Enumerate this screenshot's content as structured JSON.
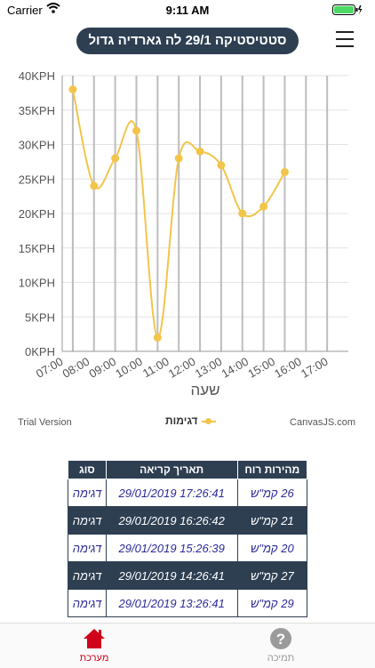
{
  "status_bar": {
    "carrier": "Carrier",
    "time": "9:11 AM"
  },
  "header": {
    "title": "סטטיסטיקה 29/1 לה גארדיה גדול"
  },
  "chart_data": {
    "type": "line",
    "categories": [
      "07:00",
      "08:00",
      "09:00",
      "10:00",
      "11:00",
      "12:00",
      "13:00",
      "14:00",
      "15:00",
      "16:00",
      "17:00"
    ],
    "x": [
      7.4,
      8.2,
      9.0,
      9.8,
      10.6,
      11.4,
      12.2,
      13.0,
      13.8,
      14.6,
      15.4
    ],
    "values": [
      38,
      24,
      28,
      32,
      2,
      28,
      29,
      27,
      20,
      21,
      26
    ],
    "y_tick_labels": [
      "0KPH",
      "5KPH",
      "10KPH",
      "15KPH",
      "20KPH",
      "25KPH",
      "30KPH",
      "35KPH",
      "40KPH"
    ],
    "ylim": [
      0,
      40
    ],
    "xlim": [
      7,
      17.8
    ],
    "xlabel": "שעה",
    "ylabel": "",
    "series_name": "דגימות",
    "color": "#f2c54a",
    "grid": true,
    "legend": "bottom-center"
  },
  "chart_footer": {
    "trial": "Trial Version",
    "brand": "CanvasJS.com",
    "legend": "דגימות"
  },
  "table": {
    "headers": [
      "מהירות רוח",
      "תאריך קריאה",
      "סוג"
    ],
    "rows": [
      {
        "speed": "26 קמ\"ש",
        "date": "29/01/2019 17:26:41",
        "type": "דגימה"
      },
      {
        "speed": "21 קמ\"ש",
        "date": "29/01/2019 16:26:42",
        "type": "דגימה"
      },
      {
        "speed": "20 קמ\"ש",
        "date": "29/01/2019 15:26:39",
        "type": "דגימה"
      },
      {
        "speed": "27 קמ\"ש",
        "date": "29/01/2019 14:26:41",
        "type": "דגימה"
      },
      {
        "speed": "29 קמ\"ש",
        "date": "29/01/2019 13:26:41",
        "type": "דגימה"
      }
    ]
  },
  "tabs": {
    "system": "מערכת",
    "help": "תמיכה"
  },
  "colors": {
    "navy": "#2e3f52",
    "accent": "#f2c54a",
    "active_tab": "#d0021b"
  }
}
